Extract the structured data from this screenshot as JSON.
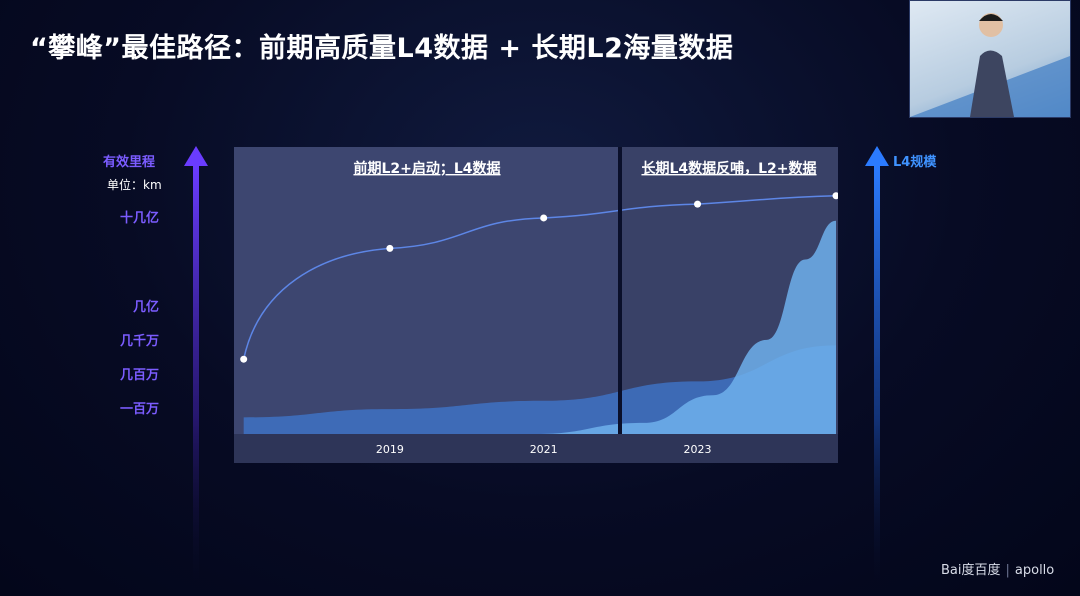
{
  "title": "“攀峰”最佳路径：前期高质量L4数据 + 长期L2海量数据",
  "left_axis": {
    "name": "有效里程",
    "unit": "单位：km",
    "levels": [
      "十几亿",
      "几亿",
      "几千万",
      "几百万",
      "一百万"
    ]
  },
  "right_axis": {
    "name": "L4规模"
  },
  "colors": {
    "panel": "#3d4670",
    "panel_right": "#394167",
    "divider": "#0a0f2a",
    "area_back": "#3f78cf",
    "area_front": "#6fb0ec",
    "line": "#5d86e6",
    "left_arrow": "#6a3cff",
    "right_arrow": "#2b7bff"
  },
  "chart_data": {
    "type": "area",
    "phases": [
      {
        "label": "前期L2+启动；L4数据"
      },
      {
        "label": "长期L4数据反哺，L2+数据"
      }
    ],
    "x_ticks": [
      "2019",
      "2021",
      "2023"
    ],
    "series": [
      {
        "kind": "line",
        "points": [
          {
            "x": 2017.1,
            "level": 0.27
          },
          {
            "x": 2019.0,
            "level": 0.67
          },
          {
            "x": 2021.0,
            "level": 0.78
          },
          {
            "x": 2023.0,
            "level": 0.83
          },
          {
            "x": 2024.8,
            "level": 0.86
          }
        ]
      },
      {
        "kind": "area",
        "points": [
          {
            "x": 2017.1,
            "level": 0.06
          },
          {
            "x": 2019.0,
            "level": 0.09
          },
          {
            "x": 2021.0,
            "level": 0.12
          },
          {
            "x": 2023.0,
            "level": 0.19
          },
          {
            "x": 2024.8,
            "level": 0.32
          }
        ]
      },
      {
        "kind": "area",
        "points": [
          {
            "x": 2020.9,
            "level": 0.0
          },
          {
            "x": 2022.3,
            "level": 0.04
          },
          {
            "x": 2023.2,
            "level": 0.14
          },
          {
            "x": 2023.9,
            "level": 0.34
          },
          {
            "x": 2024.4,
            "level": 0.63
          },
          {
            "x": 2024.8,
            "level": 0.77
          }
        ]
      }
    ],
    "xlim": [
      2017.0,
      2024.8
    ],
    "ylim": [
      0,
      1
    ],
    "legend": "none",
    "grid": false
  },
  "logo": {
    "brand": "Bai度百度",
    "product": "apollo"
  }
}
